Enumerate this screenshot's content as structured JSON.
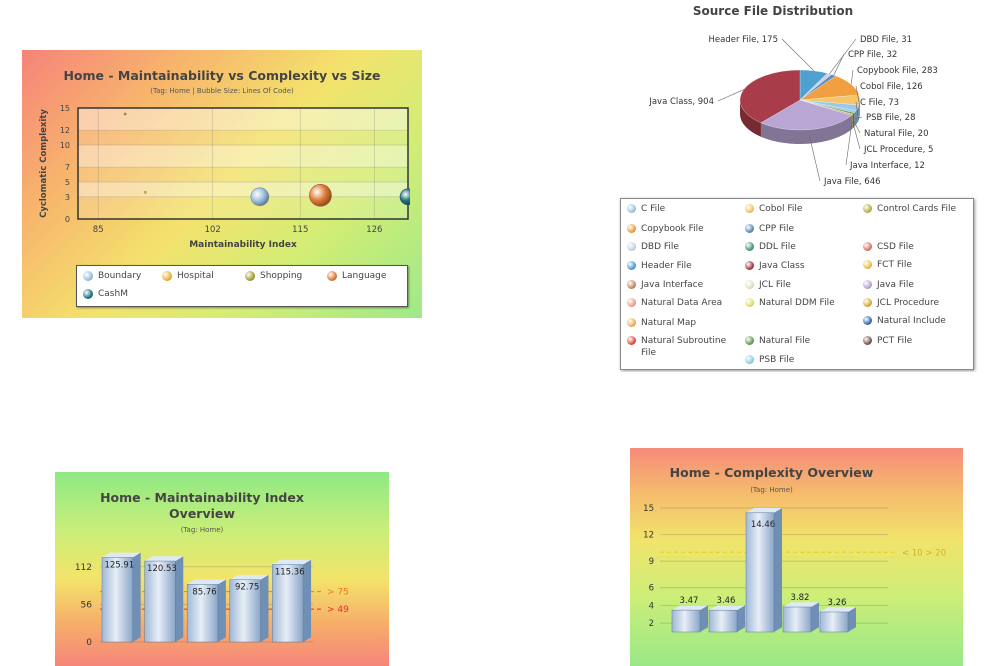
{
  "chart_data": [
    {
      "type": "scatter",
      "title": "Home - Maintainability vs Complexity vs Size",
      "subtitle": "(Tag: Home | Bubble Size: Lines Of Code)",
      "xlabel": "Maintainability Index",
      "ylabel": "Cyclomatic Complexity",
      "xlim": [
        82,
        131
      ],
      "ylim": [
        0,
        15
      ],
      "xticks": [
        "85",
        "102",
        "115",
        "126"
      ],
      "yticks": [
        "0",
        "3",
        "5",
        "7",
        "10",
        "12",
        "15"
      ],
      "series": [
        {
          "name": "Boundary",
          "color": "#9fc1e3",
          "points": [
            {
              "x": 109,
              "y": 3,
              "size": 9
            }
          ]
        },
        {
          "name": "Hospital",
          "color": "#f0b13c",
          "points": [
            {
              "x": 92,
              "y": 3.6,
              "size": 1
            }
          ]
        },
        {
          "name": "Shopping",
          "color": "#a4a03a",
          "points": [
            {
              "x": 89,
              "y": 14.2,
              "size": 1
            }
          ]
        },
        {
          "name": "Language",
          "color": "#e07a35",
          "points": [
            {
              "x": 118,
              "y": 3.2,
              "size": 11
            }
          ]
        },
        {
          "name": "CashM",
          "color": "#1f7480",
          "points": [
            {
              "x": 131,
              "y": 3,
              "size": 8
            }
          ]
        }
      ],
      "grid": true,
      "legend": "bottom"
    },
    {
      "type": "pie",
      "title": "Source File Distribution",
      "slices": [
        {
          "label": "Header File, 175",
          "value": 175,
          "color": "#4f9fcf"
        },
        {
          "label": "DBD File, 31",
          "value": 31,
          "color": "#c8d4e6"
        },
        {
          "label": "CPP File, 32",
          "value": 32,
          "color": "#5f8fbf"
        },
        {
          "label": "Copybook File, 283",
          "value": 283,
          "color": "#f0a040"
        },
        {
          "label": "Cobol File, 126",
          "value": 126,
          "color": "#f5c56a"
        },
        {
          "label": "C File, 73",
          "value": 73,
          "color": "#9fc6e6"
        },
        {
          "label": "PSB File, 28",
          "value": 28,
          "color": "#8fd0e8"
        },
        {
          "label": "Natural File, 20",
          "value": 20,
          "color": "#6a9f55"
        },
        {
          "label": "JCL Procedure, 5",
          "value": 5,
          "color": "#d8b040"
        },
        {
          "label": "Java Interface, 12",
          "value": 12,
          "color": "#c88a60"
        },
        {
          "label": "Java File, 646",
          "value": 646,
          "color": "#b9a6d4"
        },
        {
          "label": "Java Class, 904",
          "value": 904,
          "color": "#a83c48"
        }
      ],
      "legend": "bottom",
      "legend_items": [
        {
          "label": "C File",
          "color": "#9fc6e6"
        },
        {
          "label": "Cobol File",
          "color": "#f5c56a"
        },
        {
          "label": "Control Cards File",
          "color": "#b7b24a"
        },
        {
          "label": "Copybook File",
          "color": "#f0a040"
        },
        {
          "label": "CPP File",
          "color": "#5f8fbf"
        },
        {
          "label": "CSD File",
          "color": "#e0786a"
        },
        {
          "label": "DBD File",
          "color": "#c8d4e6"
        },
        {
          "label": "DDL File",
          "color": "#4a9a7a"
        },
        {
          "label": "FCT File",
          "color": "#f2c04a"
        },
        {
          "label": "Header File",
          "color": "#4f9fcf"
        },
        {
          "label": "Java Class",
          "color": "#a83c48"
        },
        {
          "label": "Java File",
          "color": "#b9a6d4"
        },
        {
          "label": "Java Interface",
          "color": "#c88a60"
        },
        {
          "label": "JCL File",
          "color": "#e8e0c8"
        },
        {
          "label": "JCL Procedure",
          "color": "#d8b040"
        },
        {
          "label": "Natural Data Area",
          "color": "#f0a090"
        },
        {
          "label": "Natural DDM File",
          "color": "#e8e070"
        },
        {
          "label": "Natural Include",
          "color": "#3a6fb0"
        },
        {
          "label": "Natural Map",
          "color": "#f0b060"
        },
        {
          "label": "Natural Subroutine File",
          "color": "#e05040"
        },
        {
          "label": "Natural File",
          "color": "#6a9f55"
        },
        {
          "label": "PCT File",
          "color": "#7a5a50"
        },
        {
          "label": "PSB File",
          "color": "#8fd0e8"
        }
      ]
    },
    {
      "type": "bar",
      "title": "Home - Maintainability Index Overview",
      "subtitle": "(Tag: Home)",
      "yticks": [
        "0",
        "56",
        "112"
      ],
      "ylim": [
        0,
        140
      ],
      "values": [
        125.91,
        120.53,
        85.76,
        92.75,
        115.36
      ],
      "data_labels": [
        "125.91",
        "120.53",
        "85.76",
        "92.75",
        "115.36"
      ],
      "trendlines": [
        {
          "value": 75,
          "label": "> 75",
          "color": "#f07a20"
        },
        {
          "value": 49,
          "label": "> 49",
          "color": "#e03030"
        }
      ],
      "grid": true
    },
    {
      "type": "bar",
      "title": "Home - Complexity Overview",
      "subtitle": "(Tag: Home)",
      "yticks": [
        "2",
        "4",
        "6",
        "9",
        "12",
        "15"
      ],
      "ylim": [
        1,
        15
      ],
      "values": [
        3.47,
        3.46,
        14.46,
        3.82,
        3.26
      ],
      "data_labels": [
        "3.47",
        "3.46",
        "14.46",
        "3.82",
        "3.26"
      ],
      "trendlines": [
        {
          "value": 10,
          "label": "< 10 > 20",
          "color": "#f0d020"
        }
      ],
      "grid": true
    }
  ]
}
